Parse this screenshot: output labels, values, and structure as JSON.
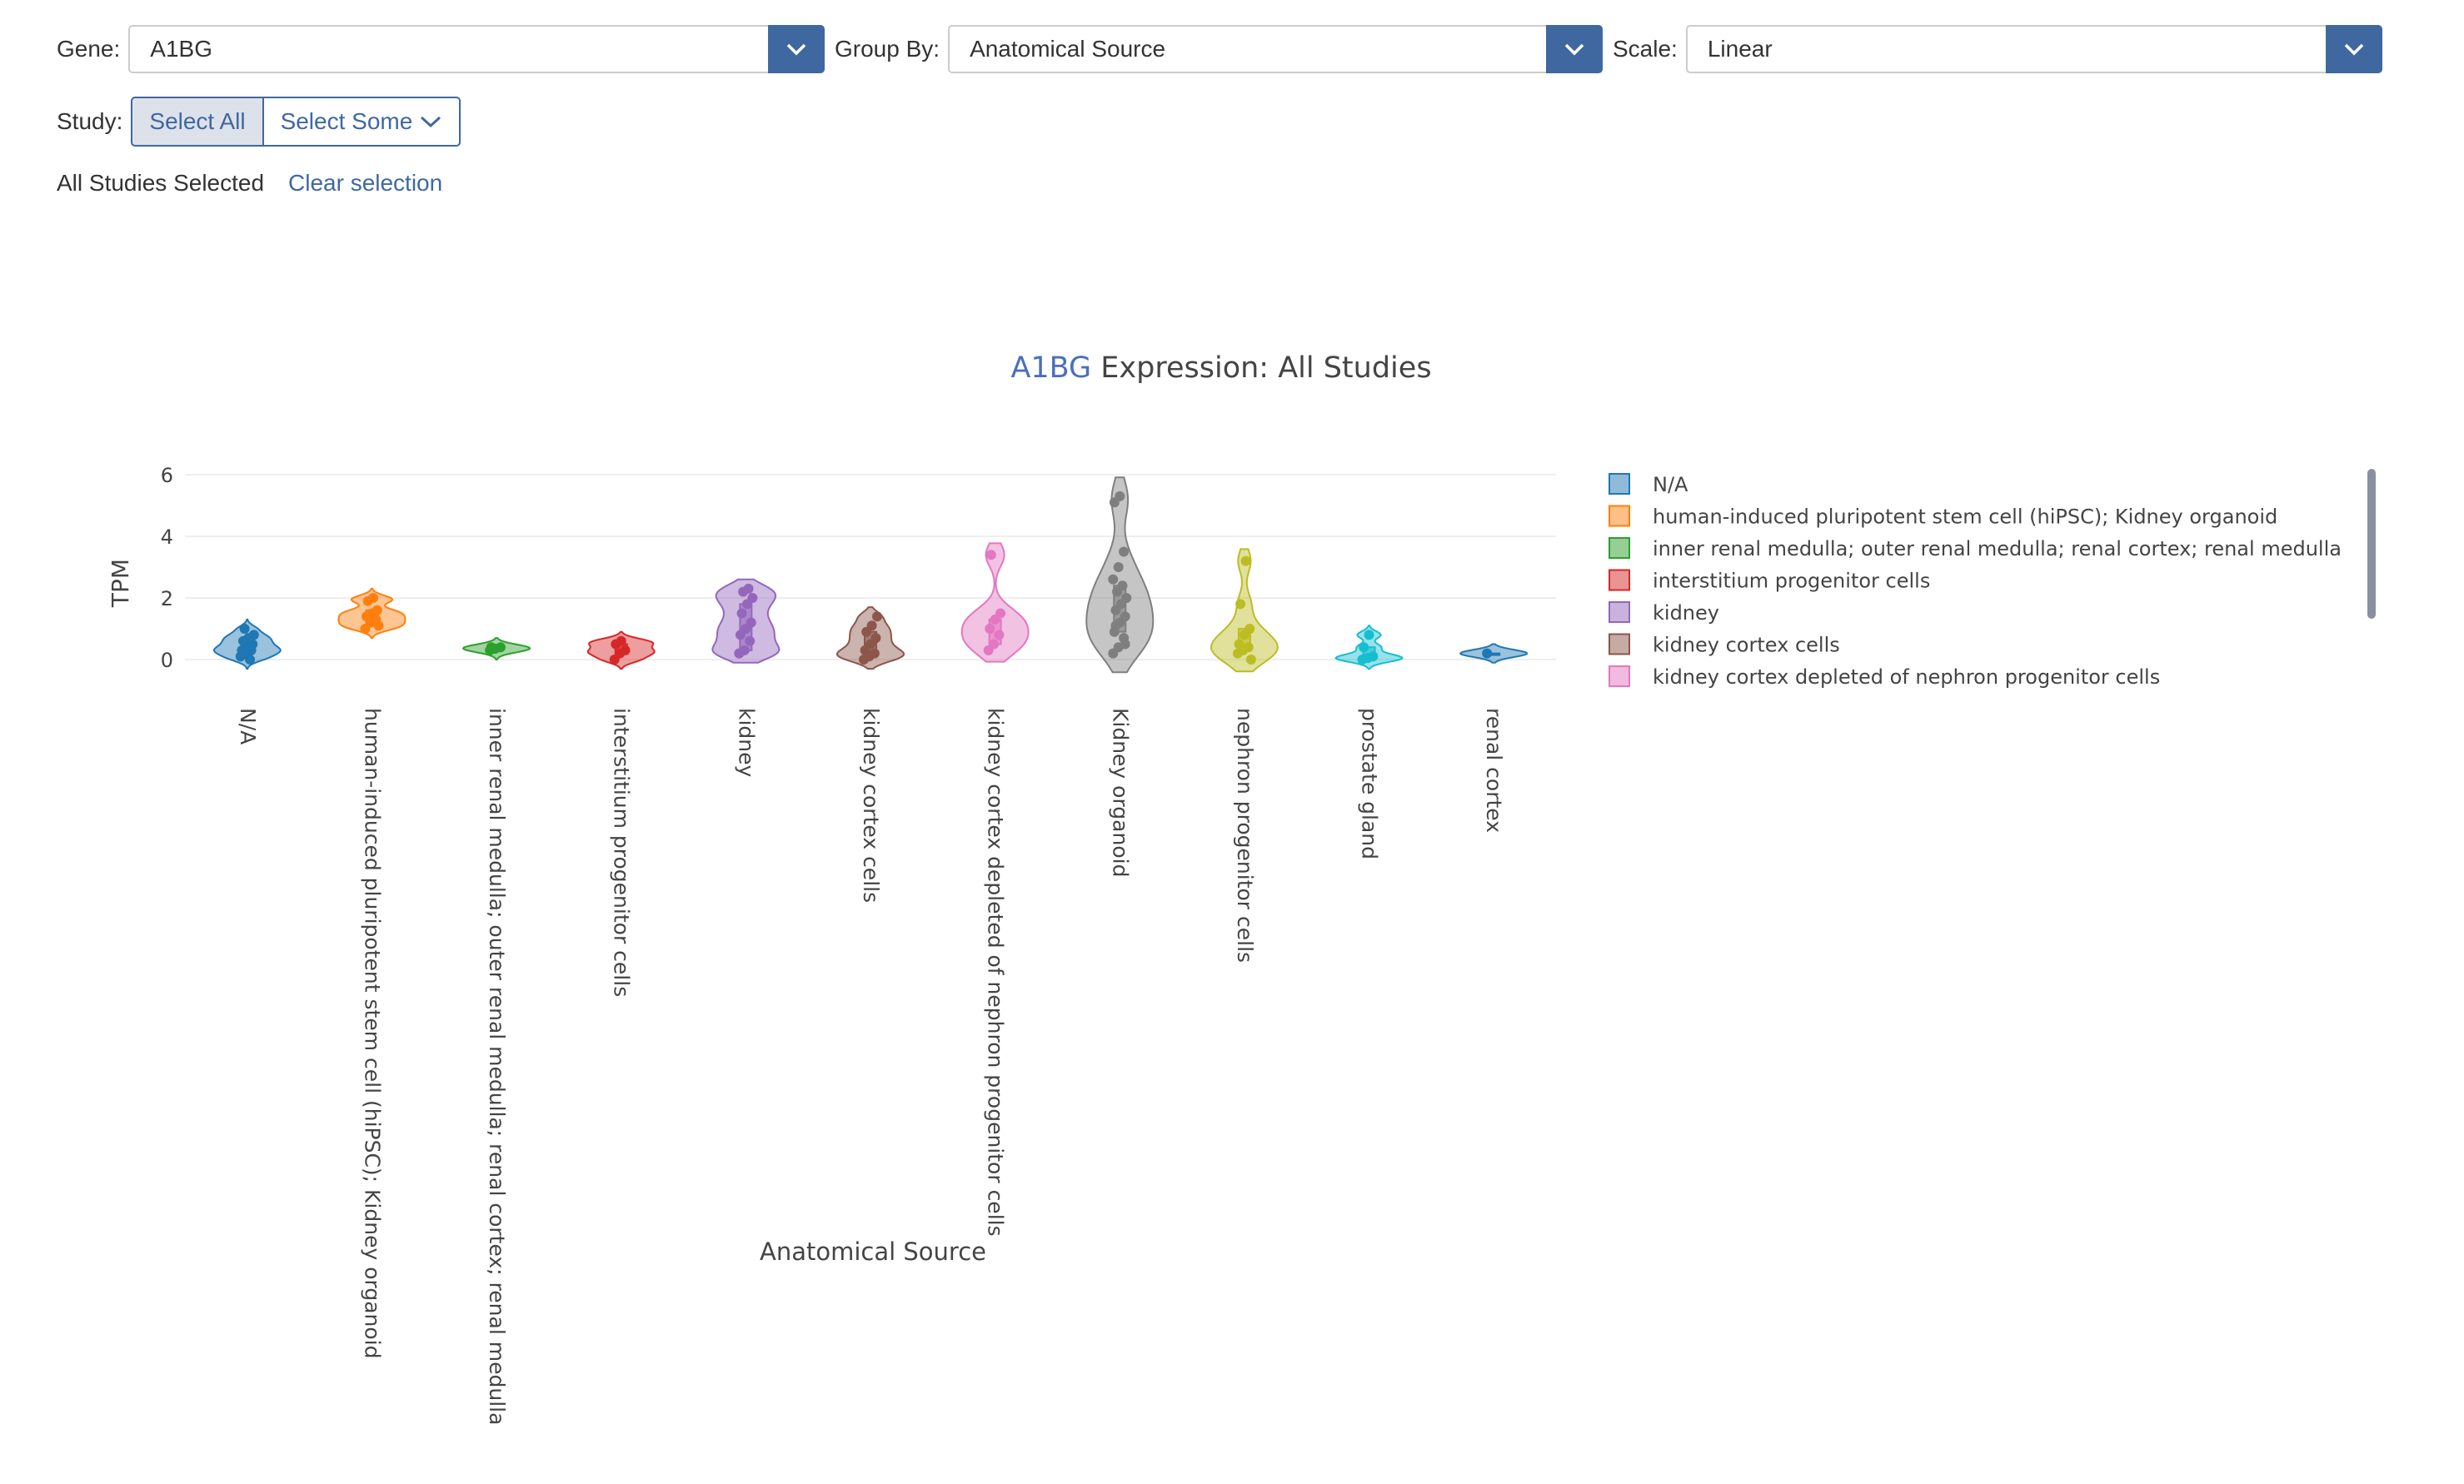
{
  "controls": {
    "gene_label": "Gene:",
    "gene_value": "A1BG",
    "group_label": "Group By:",
    "group_value": "Anatomical Source",
    "scale_label": "Scale:",
    "scale_value": "Linear",
    "study_label": "Study:",
    "select_all": "Select All",
    "select_some": "Select Some",
    "selection_status": "All Studies Selected",
    "clear_selection": "Clear selection"
  },
  "colors": {
    "accent": "#3f68a0",
    "series": [
      "#1f77b4",
      "#ff7f0e",
      "#2ca02c",
      "#d62728",
      "#9467bd",
      "#8c564b",
      "#e377c2",
      "#7f7f7f",
      "#bcbd22",
      "#17becf",
      "#1f77b4"
    ]
  },
  "chart_data": {
    "type": "violin",
    "title_gene": "A1BG",
    "title_rest": " Expression: All Studies",
    "xlabel": "Anatomical Source",
    "ylabel": "TPM",
    "ylim": [
      -0.9,
      6.2
    ],
    "yticks": [
      0,
      2,
      4,
      6
    ],
    "legend_position": "right",
    "categories": [
      "N/A",
      "human-induced pluripotent stem cell (hiPSC); Kidney organoid",
      "inner renal medulla; outer renal medulla; renal cortex; renal medulla",
      "interstitium progenitor cells",
      "kidney",
      "kidney cortex cells",
      "kidney cortex depleted of nephron progenitor cells",
      "Kidney organoid",
      "nephron progenitor cells",
      "prostate gland",
      "renal cortex"
    ],
    "legend": [
      "N/A",
      "human-induced pluripotent stem cell (hiPSC); Kidney organoid",
      "inner renal medulla; outer renal medulla; renal cortex; renal medulla",
      "interstitium progenitor cells",
      "kidney",
      "kidney cortex cells",
      "kidney cortex depleted of nephron progenitor cells"
    ],
    "series": [
      {
        "values": [
          0.1,
          0.2,
          0.3,
          0.3,
          0.4,
          0.5,
          0.6,
          0.7,
          0.8,
          1.0,
          0.0
        ]
      },
      {
        "values": [
          1.0,
          1.2,
          1.3,
          1.4,
          1.5,
          1.6,
          1.9,
          2.0,
          1.1
        ]
      },
      {
        "values": [
          0.3,
          0.35,
          0.4,
          0.4
        ]
      },
      {
        "values": [
          0.0,
          0.2,
          0.3,
          0.5,
          0.6
        ]
      },
      {
        "values": [
          0.2,
          0.3,
          0.6,
          0.8,
          1.0,
          1.2,
          1.5,
          1.8,
          2.0,
          2.2,
          2.3,
          0.2
        ]
      },
      {
        "values": [
          0.0,
          0.1,
          0.2,
          0.3,
          0.5,
          0.7,
          0.9,
          1.1,
          1.4
        ]
      },
      {
        "values": [
          0.3,
          0.5,
          0.8,
          1.0,
          1.3,
          1.5,
          3.4
        ]
      },
      {
        "values": [
          0.2,
          0.4,
          0.7,
          0.9,
          1.2,
          1.4,
          1.6,
          1.8,
          2.0,
          2.2,
          2.4,
          2.6,
          3.0,
          3.5,
          5.1,
          5.3,
          0.5,
          1.1
        ]
      },
      {
        "values": [
          0.2,
          0.3,
          0.4,
          0.5,
          0.8,
          1.0,
          1.8,
          3.2,
          0.0
        ]
      },
      {
        "values": [
          0.0,
          0.05,
          0.1,
          0.4,
          0.8
        ]
      },
      {
        "values": [
          0.2
        ]
      }
    ]
  }
}
